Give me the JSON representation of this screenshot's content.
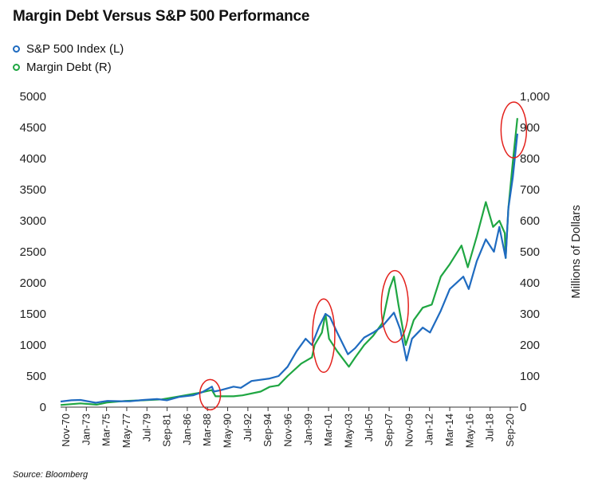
{
  "chart_data": {
    "type": "line",
    "title": "Margin Debt Versus S&P 500 Performance",
    "source": "Source: Bloomberg",
    "y_right_label": "Millions of Dollars",
    "ylim_left": [
      0,
      5000
    ],
    "ylim_right": [
      0,
      1000
    ],
    "y_left_ticks": [
      "5000",
      "4500",
      "4000",
      "3500",
      "3000",
      "2500",
      "2000",
      "1500",
      "1000",
      "500",
      "0"
    ],
    "y_right_ticks": [
      "1,000",
      "900",
      "800",
      "700",
      "600",
      "500",
      "400",
      "300",
      "200",
      "100",
      "0"
    ],
    "x_ticks": [
      "Nov-70",
      "Jan-73",
      "Mar-75",
      "May-77",
      "Jul-79",
      "Sep-81",
      "Jan-86",
      "Mar-88",
      "May-90",
      "Jul-92",
      "Sep-94",
      "Nov-96",
      "Jan-99",
      "Mar-01",
      "May-03",
      "Jul-05",
      "Sep-07",
      "Nov-09",
      "Jan-12",
      "Mar-14",
      "May-16",
      "Jul-18",
      "Sep-20"
    ],
    "legend_placement": "top-left",
    "grid": false,
    "series": [
      {
        "name": "S&P 500 Index (L)",
        "axis": "left",
        "color": "#1f6bc0",
        "x": [
          1970.8,
          1972.0,
          1973.0,
          1974.7,
          1976.0,
          1977.5,
          1978.5,
          1980.0,
          1981.5,
          1982.6,
          1984.0,
          1985.5,
          1986.5,
          1987.6,
          1987.8,
          1988.5,
          1990.0,
          1990.8,
          1992.0,
          1994.0,
          1995.0,
          1996.0,
          1997.0,
          1998.0,
          1998.7,
          1999.5,
          2000.2,
          2000.7,
          2001.5,
          2002.7,
          2003.5,
          2004.5,
          2005.5,
          2006.5,
          2007.8,
          2008.5,
          2009.2,
          2009.8,
          2011.0,
          2011.8,
          2013.0,
          2014.0,
          2015.5,
          2016.1,
          2017.0,
          2018.0,
          2018.9,
          2019.5,
          2020.2,
          2020.5,
          2021.0,
          2021.5
        ],
        "y": [
          90,
          110,
          115,
          70,
          100,
          95,
          95,
          115,
          130,
          110,
          165,
          190,
          240,
          330,
          250,
          270,
          330,
          310,
          420,
          460,
          500,
          650,
          900,
          1100,
          1000,
          1300,
          1500,
          1450,
          1200,
          850,
          950,
          1120,
          1200,
          1300,
          1520,
          1250,
          750,
          1100,
          1280,
          1200,
          1550,
          1900,
          2100,
          1900,
          2350,
          2700,
          2500,
          2900,
          2400,
          3200,
          3700,
          4400
        ]
      },
      {
        "name": "Margin Debt (R)",
        "axis": "right",
        "color": "#1fa642",
        "x": [
          1970.8,
          1973.0,
          1974.8,
          1976.0,
          1978.0,
          1980.0,
          1982.0,
          1984.0,
          1986.0,
          1987.6,
          1988.0,
          1990.0,
          1991.0,
          1993.0,
          1994.0,
          1995.0,
          1996.0,
          1997.5,
          1998.7,
          1999.0,
          1999.8,
          2000.2,
          2000.6,
          2001.5,
          2002.8,
          2003.5,
          2004.5,
          2005.5,
          2006.5,
          2007.3,
          2007.8,
          2008.3,
          2009.1,
          2010.0,
          2011.0,
          2012.0,
          2013.0,
          2014.0,
          2015.3,
          2016.0,
          2017.0,
          2018.0,
          2018.8,
          2019.5,
          2020.1,
          2020.2,
          2020.5,
          2021.0,
          2021.5
        ],
        "y": [
          7,
          12,
          8,
          15,
          20,
          22,
          25,
          35,
          45,
          55,
          35,
          35,
          38,
          50,
          65,
          70,
          100,
          140,
          160,
          200,
          240,
          300,
          220,
          180,
          130,
          160,
          200,
          230,
          270,
          380,
          420,
          330,
          200,
          280,
          320,
          330,
          420,
          460,
          520,
          450,
          550,
          660,
          580,
          600,
          560,
          480,
          640,
          790,
          930
        ]
      }
    ],
    "highlights": [
      {
        "x": 1987.4,
        "y_left": 200,
        "note": "red ellipse"
      },
      {
        "x": 2000.0,
        "y_left": 1150,
        "note": "red ellipse"
      },
      {
        "x": 2007.9,
        "y_left": 1620,
        "note": "red ellipse"
      },
      {
        "x": 2021.1,
        "y_left": 4460,
        "note": "red ellipse"
      }
    ]
  }
}
